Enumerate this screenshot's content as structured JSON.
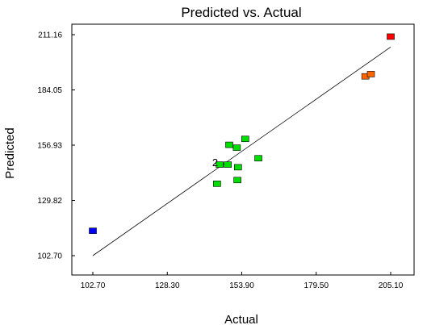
{
  "chart_data": {
    "type": "scatter",
    "title": "Predicted vs. Actual",
    "xlabel": "Actual",
    "ylabel": "Predicted",
    "xlim": [
      102.7,
      205.1
    ],
    "ylim": [
      102.7,
      211.16
    ],
    "x_ticks": [
      "102.70",
      "128.30",
      "153.90",
      "179.50",
      "205.10"
    ],
    "y_ticks": [
      "102.70",
      "129.82",
      "156.93",
      "184.05",
      "211.16"
    ],
    "fit_line": {
      "x": [
        102.7,
        205.1
      ],
      "y": [
        102.7,
        205.1
      ]
    },
    "point_colors": {
      "high": "#ff0000",
      "upper": "#ff6600",
      "mid": "#00dd00",
      "low": "#0000ff"
    },
    "points": [
      {
        "x": 102.7,
        "y": 114.9,
        "color": "#0000ff"
      },
      {
        "x": 145.4,
        "y": 138.0,
        "color": "#00dd00"
      },
      {
        "x": 146.3,
        "y": 147.4,
        "color": "#00dd00",
        "label": "2"
      },
      {
        "x": 149.1,
        "y": 147.4,
        "color": "#00dd00"
      },
      {
        "x": 149.6,
        "y": 157.1,
        "color": "#00dd00"
      },
      {
        "x": 152.4,
        "y": 139.8,
        "color": "#00dd00"
      },
      {
        "x": 152.6,
        "y": 146.1,
        "color": "#00dd00"
      },
      {
        "x": 152.2,
        "y": 155.7,
        "color": "#00dd00"
      },
      {
        "x": 155.1,
        "y": 160.0,
        "color": "#00dd00"
      },
      {
        "x": 159.6,
        "y": 150.5,
        "color": "#00dd00"
      },
      {
        "x": 196.4,
        "y": 190.7,
        "color": "#ff6600"
      },
      {
        "x": 198.3,
        "y": 191.8,
        "color": "#ff6600"
      },
      {
        "x": 205.1,
        "y": 210.2,
        "color": "#ff0000"
      }
    ]
  }
}
